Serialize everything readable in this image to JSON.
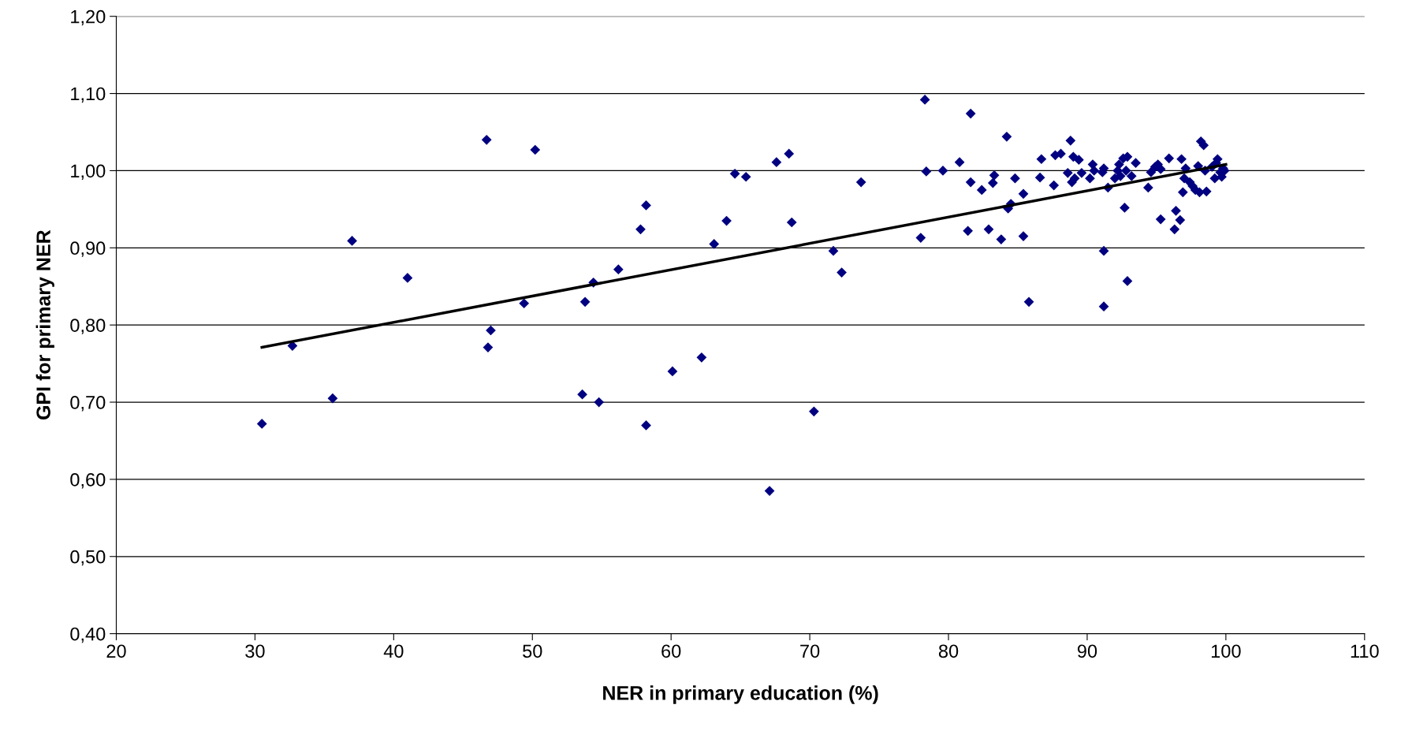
{
  "chart_data": {
    "type": "scatter",
    "xlabel": "NER in primary education (%)",
    "ylabel": "GPI for primary NER",
    "xlim": [
      20,
      110
    ],
    "xticks": [
      20,
      30,
      40,
      50,
      60,
      70,
      80,
      90,
      100,
      110
    ],
    "ylim": [
      0.4,
      1.2
    ],
    "yticks": [
      {
        "value": 0.4,
        "label": "0,40"
      },
      {
        "value": 0.5,
        "label": "0,50"
      },
      {
        "value": 0.6,
        "label": "0,60"
      },
      {
        "value": 0.7,
        "label": "0,70"
      },
      {
        "value": 0.8,
        "label": "0,80"
      },
      {
        "value": 0.9,
        "label": "0,90"
      },
      {
        "value": 1.0,
        "label": "1,00"
      },
      {
        "value": 1.1,
        "label": "1,10"
      },
      {
        "value": 1.2,
        "label": "1,20"
      }
    ],
    "grid": "y",
    "marker": "diamond",
    "series": [
      {
        "color": "#000080",
        "x": [
          30.5,
          32.7,
          35.6,
          37,
          41,
          46.7,
          46.8,
          47,
          49.4,
          50.2,
          53.6,
          53.8,
          54.4,
          54.8,
          56.2,
          57.8,
          58.2,
          58.2,
          60.1,
          62.2,
          63.1,
          64,
          64.6,
          65.4,
          67.1,
          67.6,
          68.5,
          68.7,
          70.3,
          71.7,
          72.3,
          73.7,
          78,
          78.3,
          78.4,
          79.6,
          80.8,
          81.4,
          81.6,
          81.6,
          82.4,
          82.9,
          83.2,
          83.3,
          83.8,
          84.2,
          84.3,
          84.5,
          84.8,
          85.4,
          85.4,
          85.8,
          86.6,
          86.7,
          87.6,
          87.7,
          88.1,
          88.6,
          88.8,
          88.9,
          89,
          89.1,
          89.4,
          89.6,
          90.2,
          90.4,
          90.5,
          91.1,
          91.2,
          91.2,
          91.2,
          91.5,
          92,
          92.2,
          92.3,
          92.4,
          92.6,
          92.7,
          92.8,
          92.9,
          92.9,
          93.2,
          93.5,
          94.4,
          94.6,
          94.9,
          95.1,
          95.3,
          95.3,
          95.9,
          96.3,
          96.4,
          96.7,
          96.8,
          96.9,
          97,
          97.1,
          97.4,
          97.6,
          97.8,
          98,
          98.1,
          98.2,
          98.4,
          98.5,
          98.6,
          99,
          99.2,
          99.3,
          99.4,
          99.6,
          99.8,
          99.9,
          99.7
        ],
        "values": [
          0.672,
          0.773,
          0.705,
          0.909,
          0.861,
          1.04,
          0.771,
          0.793,
          0.828,
          1.027,
          0.71,
          0.83,
          0.855,
          0.7,
          0.872,
          0.924,
          0.955,
          0.67,
          0.74,
          0.758,
          0.905,
          0.935,
          0.996,
          0.992,
          0.585,
          1.011,
          1.022,
          0.933,
          0.688,
          0.896,
          0.868,
          0.985,
          0.913,
          1.092,
          0.999,
          1.0,
          1.011,
          0.922,
          1.074,
          0.985,
          0.975,
          0.924,
          0.984,
          0.994,
          0.911,
          1.044,
          0.951,
          0.957,
          0.99,
          0.915,
          0.97,
          0.83,
          0.991,
          1.015,
          0.981,
          1.02,
          1.022,
          0.997,
          1.039,
          0.985,
          1.018,
          0.99,
          1.014,
          0.997,
          0.99,
          1.008,
          1.0,
          0.998,
          1.003,
          0.896,
          0.824,
          0.978,
          0.99,
          1.0,
          1.008,
          0.993,
          1.016,
          0.952,
          1.0,
          1.018,
          0.857,
          0.993,
          1.01,
          0.978,
          0.998,
          1.005,
          1.008,
          1.002,
          0.937,
          1.016,
          0.924,
          0.948,
          0.936,
          1.015,
          0.972,
          0.99,
          1.003,
          0.985,
          0.98,
          0.975,
          1.006,
          0.972,
          1.038,
          1.033,
          1.0,
          0.973,
          1.005,
          0.99,
          1.01,
          1.015,
          0.998,
          1.003,
          1.0,
          0.992
        ]
      },
      {
        "type": "line",
        "color": "#000000",
        "marker": "none",
        "x": [
          30.5,
          100
        ],
        "values": [
          0.771,
          1.008
        ]
      }
    ]
  }
}
